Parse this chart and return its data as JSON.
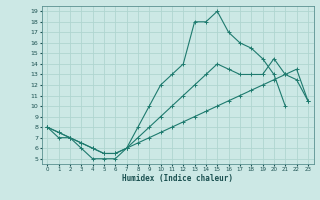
{
  "xlabel": "Humidex (Indice chaleur)",
  "bg_color": "#cce8e5",
  "grid_color": "#b0d5d0",
  "line_color": "#1e7a6e",
  "xlim": [
    -0.5,
    23.5
  ],
  "ylim": [
    4.5,
    19.5
  ],
  "xticks": [
    0,
    1,
    2,
    3,
    4,
    5,
    6,
    7,
    8,
    9,
    10,
    11,
    12,
    13,
    14,
    15,
    16,
    17,
    18,
    19,
    20,
    21,
    22,
    23
  ],
  "yticks": [
    5,
    6,
    7,
    8,
    9,
    10,
    11,
    12,
    13,
    14,
    15,
    16,
    17,
    18,
    19
  ],
  "curve1_x": [
    0,
    1,
    2,
    3,
    4,
    5,
    6,
    7,
    8,
    9,
    10,
    11,
    12,
    13,
    14,
    15,
    16,
    17,
    18,
    19,
    20,
    21
  ],
  "curve1_y": [
    8,
    7,
    7,
    6,
    5,
    5,
    5,
    6,
    8,
    10,
    12,
    13,
    14,
    18,
    18,
    19,
    17,
    16,
    15.5,
    14.5,
    13,
    10
  ],
  "curve2_x": [
    0,
    1,
    2,
    3,
    4,
    5,
    6,
    7,
    8,
    9,
    10,
    11,
    12,
    13,
    14,
    15,
    16,
    17,
    18,
    19,
    20,
    21,
    22,
    23
  ],
  "curve2_y": [
    8,
    7.5,
    7,
    6.5,
    6,
    5.5,
    5.5,
    6,
    7,
    8,
    9,
    10,
    11,
    12,
    13,
    14,
    13.5,
    13,
    13,
    13,
    14.5,
    13,
    12.5,
    10.5
  ],
  "curve3_x": [
    0,
    1,
    2,
    3,
    4,
    5,
    6,
    7,
    8,
    9,
    10,
    11,
    12,
    13,
    14,
    15,
    16,
    17,
    18,
    19,
    20,
    21,
    22,
    23
  ],
  "curve3_y": [
    8,
    7.5,
    7,
    6.5,
    6,
    5.5,
    5.5,
    6,
    6.5,
    7,
    7.5,
    8,
    8.5,
    9,
    9.5,
    10,
    10.5,
    11,
    11.5,
    12,
    12.5,
    13,
    13.5,
    10.5
  ]
}
